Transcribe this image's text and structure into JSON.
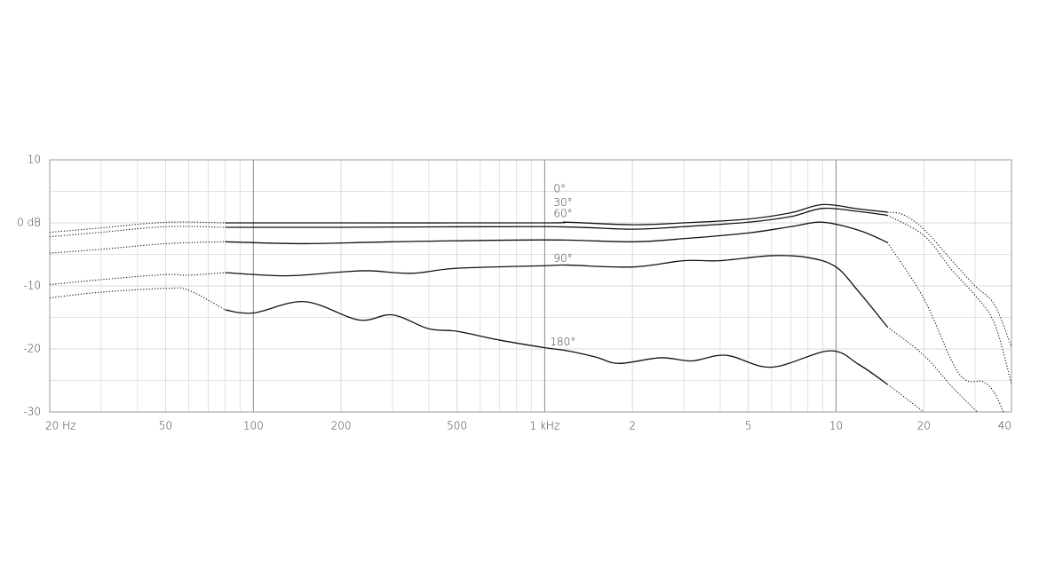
{
  "chart_data": {
    "type": "line",
    "xscale": "log",
    "xlim": [
      20,
      40000
    ],
    "ylim": [
      -30,
      10
    ],
    "xticks": [
      {
        "value": 20,
        "label": "20 Hz"
      },
      50,
      100,
      200,
      500,
      {
        "value": 1000,
        "label": "1 kHz"
      },
      {
        "value": 2000,
        "label": "2"
      },
      {
        "value": 5000,
        "label": "5"
      },
      {
        "value": 10000,
        "label": "10"
      },
      {
        "value": 20000,
        "label": "20"
      },
      {
        "value": 40000,
        "label": "40"
      }
    ],
    "xminorticks": [
      30,
      40,
      60,
      70,
      80,
      90,
      300,
      400,
      600,
      700,
      800,
      900,
      3000,
      4000,
      6000,
      7000,
      8000,
      9000,
      30000
    ],
    "yticks": [
      10,
      {
        "value": 0,
        "label": "0 dB"
      },
      -10,
      -20,
      -30
    ],
    "yminorticks": [
      5,
      -5,
      -15,
      -25
    ],
    "grid": true,
    "solid_xlim": [
      80,
      15000
    ],
    "color": "#111111",
    "series": [
      {
        "name": "0°",
        "x": [
          20,
          30,
          50,
          80,
          200,
          1000,
          1200,
          2000,
          3000,
          5000,
          7000,
          9000,
          12000,
          15000,
          17000,
          20000,
          25000,
          30000,
          35000,
          40000
        ],
        "values": [
          -1.5,
          -0.8,
          0.1,
          0,
          0,
          0,
          0.1,
          -0.3,
          0,
          0.6,
          1.6,
          2.9,
          2.2,
          1.7,
          1.3,
          -1,
          -6,
          -10,
          -13,
          -19.7
        ]
      },
      {
        "name": "30°",
        "x": [
          20,
          30,
          50,
          80,
          200,
          1000,
          2000,
          3000,
          5000,
          7000,
          9000,
          12000,
          15000,
          20000,
          25000,
          30000,
          35000,
          40000
        ],
        "values": [
          -2.2,
          -1.5,
          -0.6,
          -0.7,
          -0.7,
          -0.6,
          -1.0,
          -0.6,
          0.1,
          1.0,
          2.3,
          1.8,
          1.2,
          -2,
          -7.5,
          -11.5,
          -16,
          -25.5
        ]
      },
      {
        "name": "60°",
        "x": [
          20,
          30,
          50,
          80,
          150,
          300,
          1000,
          2000,
          3000,
          5000,
          7000,
          9000,
          12000,
          15000,
          20000,
          25000,
          28000,
          32000,
          35000,
          37500
        ],
        "values": [
          -4.8,
          -4.2,
          -3.3,
          -3.0,
          -3.3,
          -3.0,
          -2.7,
          -3.0,
          -2.5,
          -1.6,
          -0.6,
          0.1,
          -1.2,
          -3.1,
          -12,
          -22,
          -25,
          -25.2,
          -27,
          -30
        ]
      },
      {
        "name": "90°",
        "x": [
          20,
          30,
          50,
          60,
          80,
          130,
          200,
          250,
          350,
          500,
          1000,
          1200,
          2000,
          3000,
          4000,
          6000,
          8000,
          10000,
          12000,
          15000,
          20000,
          25000,
          30500
        ],
        "values": [
          -9.8,
          -9.0,
          -8.2,
          -8.3,
          -7.9,
          -8.4,
          -7.8,
          -7.6,
          -8.0,
          -7.2,
          -6.8,
          -6.7,
          -7.0,
          -6.0,
          -6.0,
          -5.2,
          -5.5,
          -7.0,
          -11,
          -16.5,
          -21,
          -26,
          -30
        ]
      },
      {
        "name": "180°",
        "x": [
          20,
          30,
          50,
          60,
          80,
          100,
          150,
          230,
          300,
          400,
          500,
          700,
          1000,
          1200,
          1500,
          1800,
          2500,
          3200,
          4200,
          6000,
          9500,
          12000,
          15000,
          17000,
          20000
        ],
        "values": [
          -11.9,
          -11.0,
          -10.4,
          -10.7,
          -13.8,
          -14.3,
          -12.5,
          -15.4,
          -14.6,
          -16.8,
          -17.2,
          -18.6,
          -19.8,
          -20.3,
          -21.3,
          -22.3,
          -21.4,
          -21.9,
          -21.0,
          -22.9,
          -20.3,
          -22.5,
          -25.6,
          -27.5,
          -30
        ]
      }
    ]
  }
}
